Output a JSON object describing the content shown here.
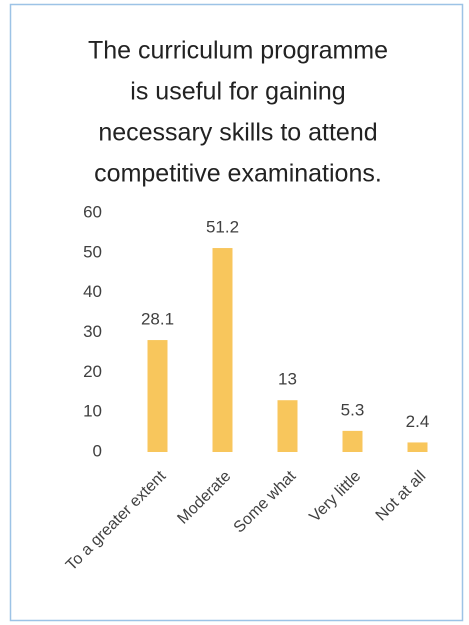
{
  "chart_data": {
    "type": "bar",
    "title": [
      "The curriculum programme",
      "is useful for gaining",
      "necessary skills to attend",
      "competitive examinations."
    ],
    "categories": [
      "To a greater extent",
      "Moderate",
      "Some what",
      "Very little",
      "Not at all"
    ],
    "values": [
      28.1,
      51.2,
      13,
      5.3,
      2.4
    ],
    "color": "#f8c65c",
    "ylim": [
      0,
      60
    ],
    "yticks": [
      0,
      10,
      20,
      30,
      40,
      50,
      60
    ],
    "grid": false
  }
}
